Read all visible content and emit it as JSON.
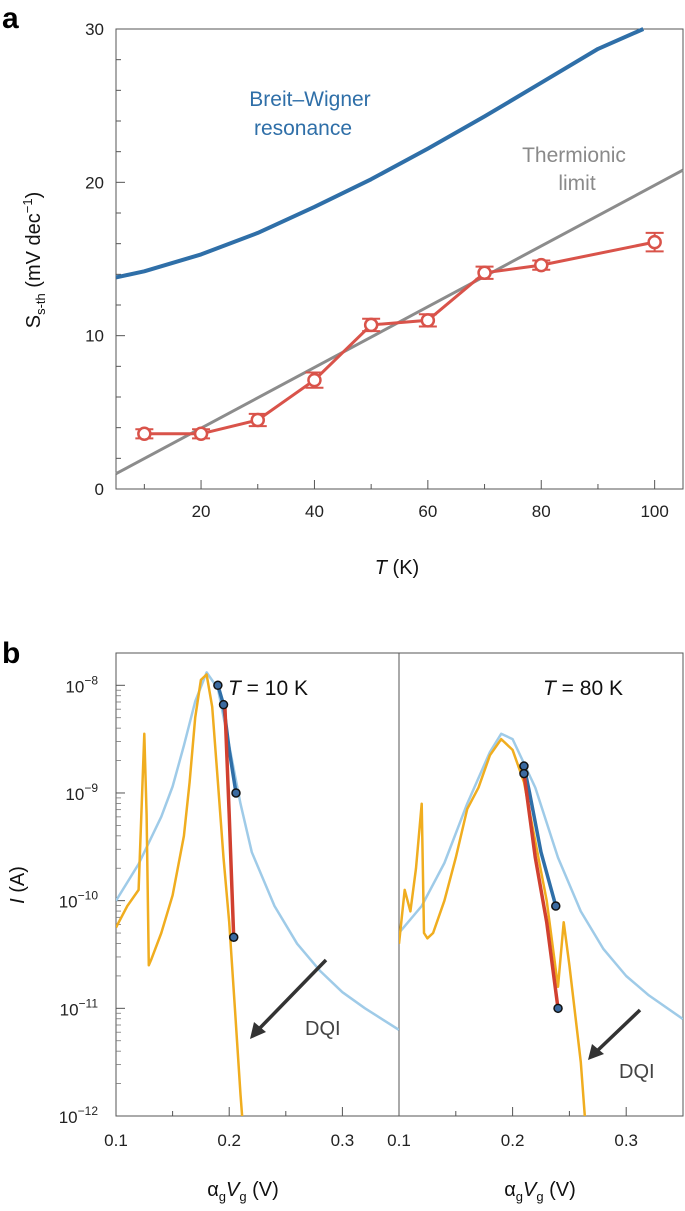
{
  "colors": {
    "breit_wigner": "#2f6fa8",
    "thermionic": "#8c8c8c",
    "data": "#d9534a",
    "orange": "#f0ad1f",
    "light_blue": "#9fcbe8",
    "dark_blue": "#2f6fa8",
    "red": "#d1402f"
  },
  "panel_a": {
    "label": "a"
  },
  "panel_b": {
    "label": "b"
  },
  "chart_data": [
    {
      "type": "line",
      "panel": "a",
      "title": "",
      "xlabel_italic": "T",
      "xlabel_unit": " (K)",
      "ylabel_main": "S",
      "ylabel_sub": "s-th",
      "ylabel_unit": " (mV dec",
      "ylabel_exp": "−1",
      "ylabel_close": ")",
      "xlim": [
        5,
        105
      ],
      "ylim": [
        0,
        30
      ],
      "xticks": [
        20,
        40,
        60,
        80,
        100
      ],
      "yticks": [
        0,
        10,
        20,
        30
      ],
      "annotations": {
        "bw_line1": "Breit–Wigner",
        "bw_line2": "resonance",
        "th_line1": "Thermionic",
        "th_line2": "limit"
      },
      "series": [
        {
          "name": "Breit–Wigner resonance",
          "x": [
            5,
            10,
            20,
            30,
            40,
            50,
            60,
            70,
            80,
            90,
            98
          ],
          "values": [
            13.8,
            14.2,
            15.3,
            16.7,
            18.4,
            20.2,
            22.2,
            24.3,
            26.5,
            28.7,
            30.0
          ]
        },
        {
          "name": "Thermionic limit",
          "x": [
            5,
            105
          ],
          "values": [
            1.0,
            20.8
          ]
        },
        {
          "name": "Measured",
          "x": [
            10,
            20,
            30,
            40,
            50,
            60,
            70,
            80,
            100
          ],
          "values": [
            3.6,
            3.6,
            4.5,
            7.1,
            10.7,
            11.0,
            14.1,
            14.6,
            16.1
          ],
          "errors": [
            0.3,
            0.3,
            0.4,
            0.5,
            0.4,
            0.4,
            0.4,
            0.3,
            0.6
          ]
        }
      ]
    },
    {
      "type": "line",
      "panel": "b-left",
      "annotation_italic": "T",
      "annotation_rest": " = 10 K",
      "dqi": "DQI",
      "xlabel_alpha": "α",
      "xlabel_g1": "g",
      "xlabel_V": "V",
      "xlabel_g2": "g",
      "xlabel_unit": " (V)",
      "ylabel_italic": "I",
      "ylabel_unit": " (A)",
      "xlim": [
        0.1,
        0.35
      ],
      "ylim_log10": [
        -12,
        -7.7
      ],
      "xticks": [
        "0.1",
        "0.2",
        "0.3"
      ],
      "yticks_exp": [
        "−8",
        "−9",
        "−10",
        "−11",
        "−12"
      ],
      "series": [
        {
          "name": "Breit–Wigner fit",
          "x": [
            0.1,
            0.12,
            0.14,
            0.15,
            0.16,
            0.17,
            0.18,
            0.19,
            0.2,
            0.21,
            0.22,
            0.24,
            0.26,
            0.28,
            0.3,
            0.32,
            0.35
          ],
          "log10_values": [
            -10.0,
            -9.66,
            -9.22,
            -8.94,
            -8.56,
            -8.15,
            -7.88,
            -8.03,
            -8.56,
            -9.1,
            -9.55,
            -10.05,
            -10.4,
            -10.65,
            -10.85,
            -11.0,
            -11.2
          ]
        },
        {
          "name": "Measured current",
          "x": [
            0.1,
            0.11,
            0.12,
            0.125,
            0.127,
            0.129,
            0.131,
            0.14,
            0.15,
            0.16,
            0.165,
            0.17,
            0.175,
            0.18,
            0.185,
            0.19,
            0.195,
            0.2,
            0.205,
            0.21,
            0.215,
            0.22
          ],
          "log10_values": [
            -10.25,
            -10.05,
            -9.9,
            -8.45,
            -9.2,
            -10.6,
            -10.55,
            -10.3,
            -9.95,
            -9.4,
            -8.9,
            -8.3,
            -7.95,
            -7.9,
            -8.2,
            -8.9,
            -9.6,
            -10.2,
            -11.0,
            -11.8,
            -12.5,
            -13.0
          ]
        },
        {
          "name": "Blue fit segment",
          "x": [
            0.19,
            0.195,
            0.2,
            0.206
          ],
          "log10_values": [
            -8.0,
            -8.18,
            -8.6,
            -9.0
          ]
        },
        {
          "name": "Red fit segment",
          "x": [
            0.196,
            0.2,
            0.204
          ],
          "log10_values": [
            -8.15,
            -9.2,
            -10.34
          ]
        }
      ],
      "markers": {
        "x": [
          0.19,
          0.195,
          0.206,
          0.204
        ],
        "log10_values": [
          -8.0,
          -8.18,
          -9.0,
          -10.34
        ]
      }
    },
    {
      "type": "line",
      "panel": "b-right",
      "annotation_italic": "T",
      "annotation_rest": " = 80 K",
      "dqi": "DQI",
      "xlabel_alpha": "α",
      "xlabel_g1": "g",
      "xlabel_V": "V",
      "xlabel_g2": "g",
      "xlabel_unit": " (V)",
      "xlim": [
        0.1,
        0.35
      ],
      "ylim_log10": [
        -12,
        -7.7
      ],
      "xticks": [
        "0.1",
        "0.2",
        "0.3"
      ],
      "series": [
        {
          "name": "Breit–Wigner fit",
          "x": [
            0.1,
            0.12,
            0.14,
            0.16,
            0.18,
            0.19,
            0.2,
            0.22,
            0.24,
            0.26,
            0.28,
            0.3,
            0.32,
            0.35
          ],
          "log10_values": [
            -10.3,
            -10.05,
            -9.65,
            -9.1,
            -8.62,
            -8.45,
            -8.5,
            -8.95,
            -9.6,
            -10.1,
            -10.45,
            -10.7,
            -10.88,
            -11.1
          ]
        },
        {
          "name": "Measured current",
          "x": [
            0.1,
            0.105,
            0.11,
            0.115,
            0.12,
            0.122,
            0.125,
            0.13,
            0.14,
            0.15,
            0.16,
            0.17,
            0.18,
            0.19,
            0.2,
            0.21,
            0.22,
            0.23,
            0.24,
            0.245,
            0.25,
            0.26,
            0.265
          ],
          "log10_values": [
            -10.4,
            -9.9,
            -10.1,
            -9.7,
            -9.1,
            -10.3,
            -10.35,
            -10.3,
            -10.0,
            -9.6,
            -9.15,
            -8.95,
            -8.65,
            -8.5,
            -8.6,
            -8.9,
            -9.45,
            -10.0,
            -10.8,
            -10.2,
            -10.6,
            -11.5,
            -12.2
          ]
        },
        {
          "name": "Blue fit segment",
          "x": [
            0.21,
            0.215,
            0.225,
            0.238
          ],
          "log10_values": [
            -8.75,
            -9.0,
            -9.55,
            -10.05
          ]
        },
        {
          "name": "Red fit segment",
          "x": [
            0.21,
            0.22,
            0.23,
            0.24
          ],
          "log10_values": [
            -8.82,
            -9.6,
            -10.2,
            -11.0
          ]
        }
      ],
      "markers": {
        "x": [
          0.21,
          0.21,
          0.238,
          0.24
        ],
        "log10_values": [
          -8.75,
          -8.82,
          -10.05,
          -11.0
        ]
      }
    }
  ]
}
